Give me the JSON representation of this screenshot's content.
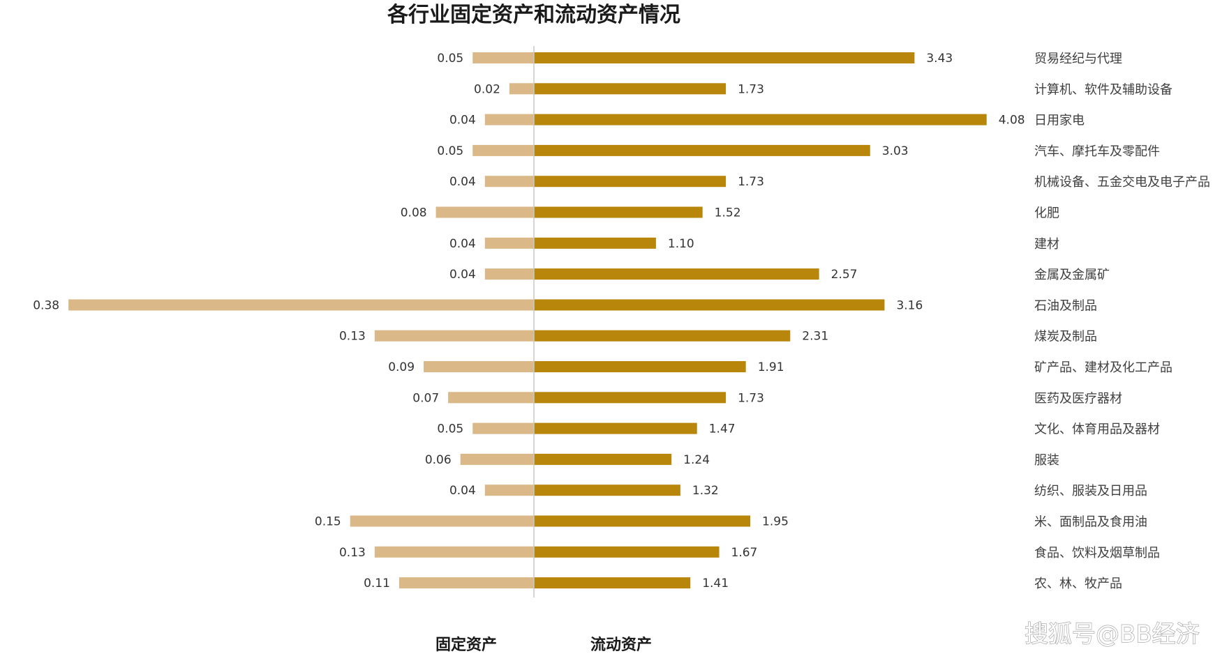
{
  "chart_data": {
    "type": "bar",
    "orientation": "horizontal-diverging",
    "title": "各行业固定资产和流动资产情况",
    "categories": [
      "贸易经纪与代理",
      "计算机、软件及辅助设备",
      "日用家电",
      "汽车、摩托车及零配件",
      "机械设备、五金交电及电子产品",
      "化肥",
      "建材",
      "金属及金属矿",
      "石油及制品",
      "煤炭及制品",
      "矿产品、建材及化工产品",
      "医药及医疗器材",
      "文化、体育用品及器材",
      "服装",
      "纺织、服装及日用品",
      "米、面制品及食用油",
      "食品、饮料及烟草制品",
      "农、林、牧产品"
    ],
    "series": [
      {
        "name": "固定资产",
        "color": "#dbb887",
        "values": [
          0.05,
          0.02,
          0.04,
          0.05,
          0.04,
          0.08,
          0.04,
          0.04,
          0.38,
          0.13,
          0.09,
          0.07,
          0.05,
          0.06,
          0.04,
          0.15,
          0.13,
          0.11
        ],
        "labels": [
          "0.05",
          "0.02",
          "0.04",
          "0.05",
          "0.04",
          "0.08",
          "0.04",
          "0.04",
          "0.38",
          "0.13",
          "0.09",
          "0.07",
          "0.05",
          "0.06",
          "0.04",
          "0.15",
          "0.13",
          "0.11"
        ]
      },
      {
        "name": "流动资产",
        "color": "#b8860b",
        "values": [
          3.43,
          1.73,
          4.08,
          3.03,
          1.73,
          1.52,
          1.1,
          2.57,
          3.16,
          2.31,
          1.91,
          1.73,
          1.47,
          1.24,
          1.32,
          1.95,
          1.67,
          1.41
        ],
        "labels": [
          "3.43",
          "1.73",
          "4.08",
          "3.03",
          "1.73",
          "1.52",
          "1.10",
          "2.57",
          "3.16",
          "2.31",
          "1.91",
          "1.73",
          "1.47",
          "1.24",
          "1.32",
          "1.95",
          "1.67",
          "1.41"
        ]
      }
    ],
    "axis_color": "#c8c8c8",
    "legend_placement": "bottom",
    "grid": false
  },
  "watermark": "搜狐号@BB经济"
}
